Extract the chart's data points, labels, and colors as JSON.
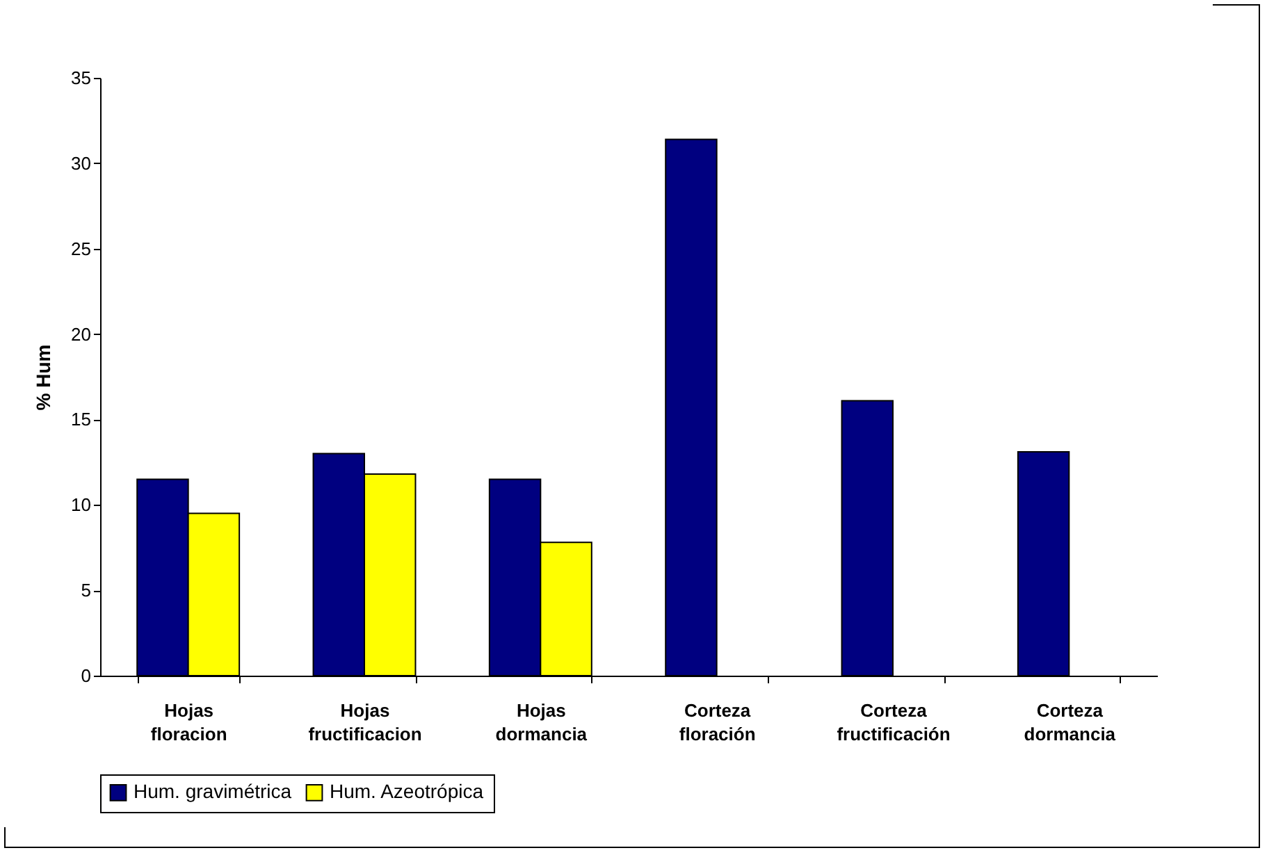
{
  "chart_data": {
    "type": "bar",
    "ylabel": "% Hum",
    "categories": [
      "Hojas floracion",
      "Hojas fructificacion",
      "Hojas dormancia",
      "Corteza floración",
      "Corteza fructificación",
      "Corteza dormancia"
    ],
    "series": [
      {
        "name": "Hum. gravimétrica",
        "color": "#000080",
        "values": [
          11.5,
          13.0,
          11.5,
          31.4,
          16.1,
          13.1
        ]
      },
      {
        "name": "Hum. Azeotrópica",
        "color": "#ffff00",
        "values": [
          9.5,
          11.8,
          7.8,
          null,
          null,
          null
        ]
      }
    ],
    "ylim": [
      0,
      35
    ],
    "yticks": [
      0,
      5,
      10,
      15,
      20,
      25,
      30,
      35
    ],
    "grid": false,
    "legend": "bottom"
  }
}
